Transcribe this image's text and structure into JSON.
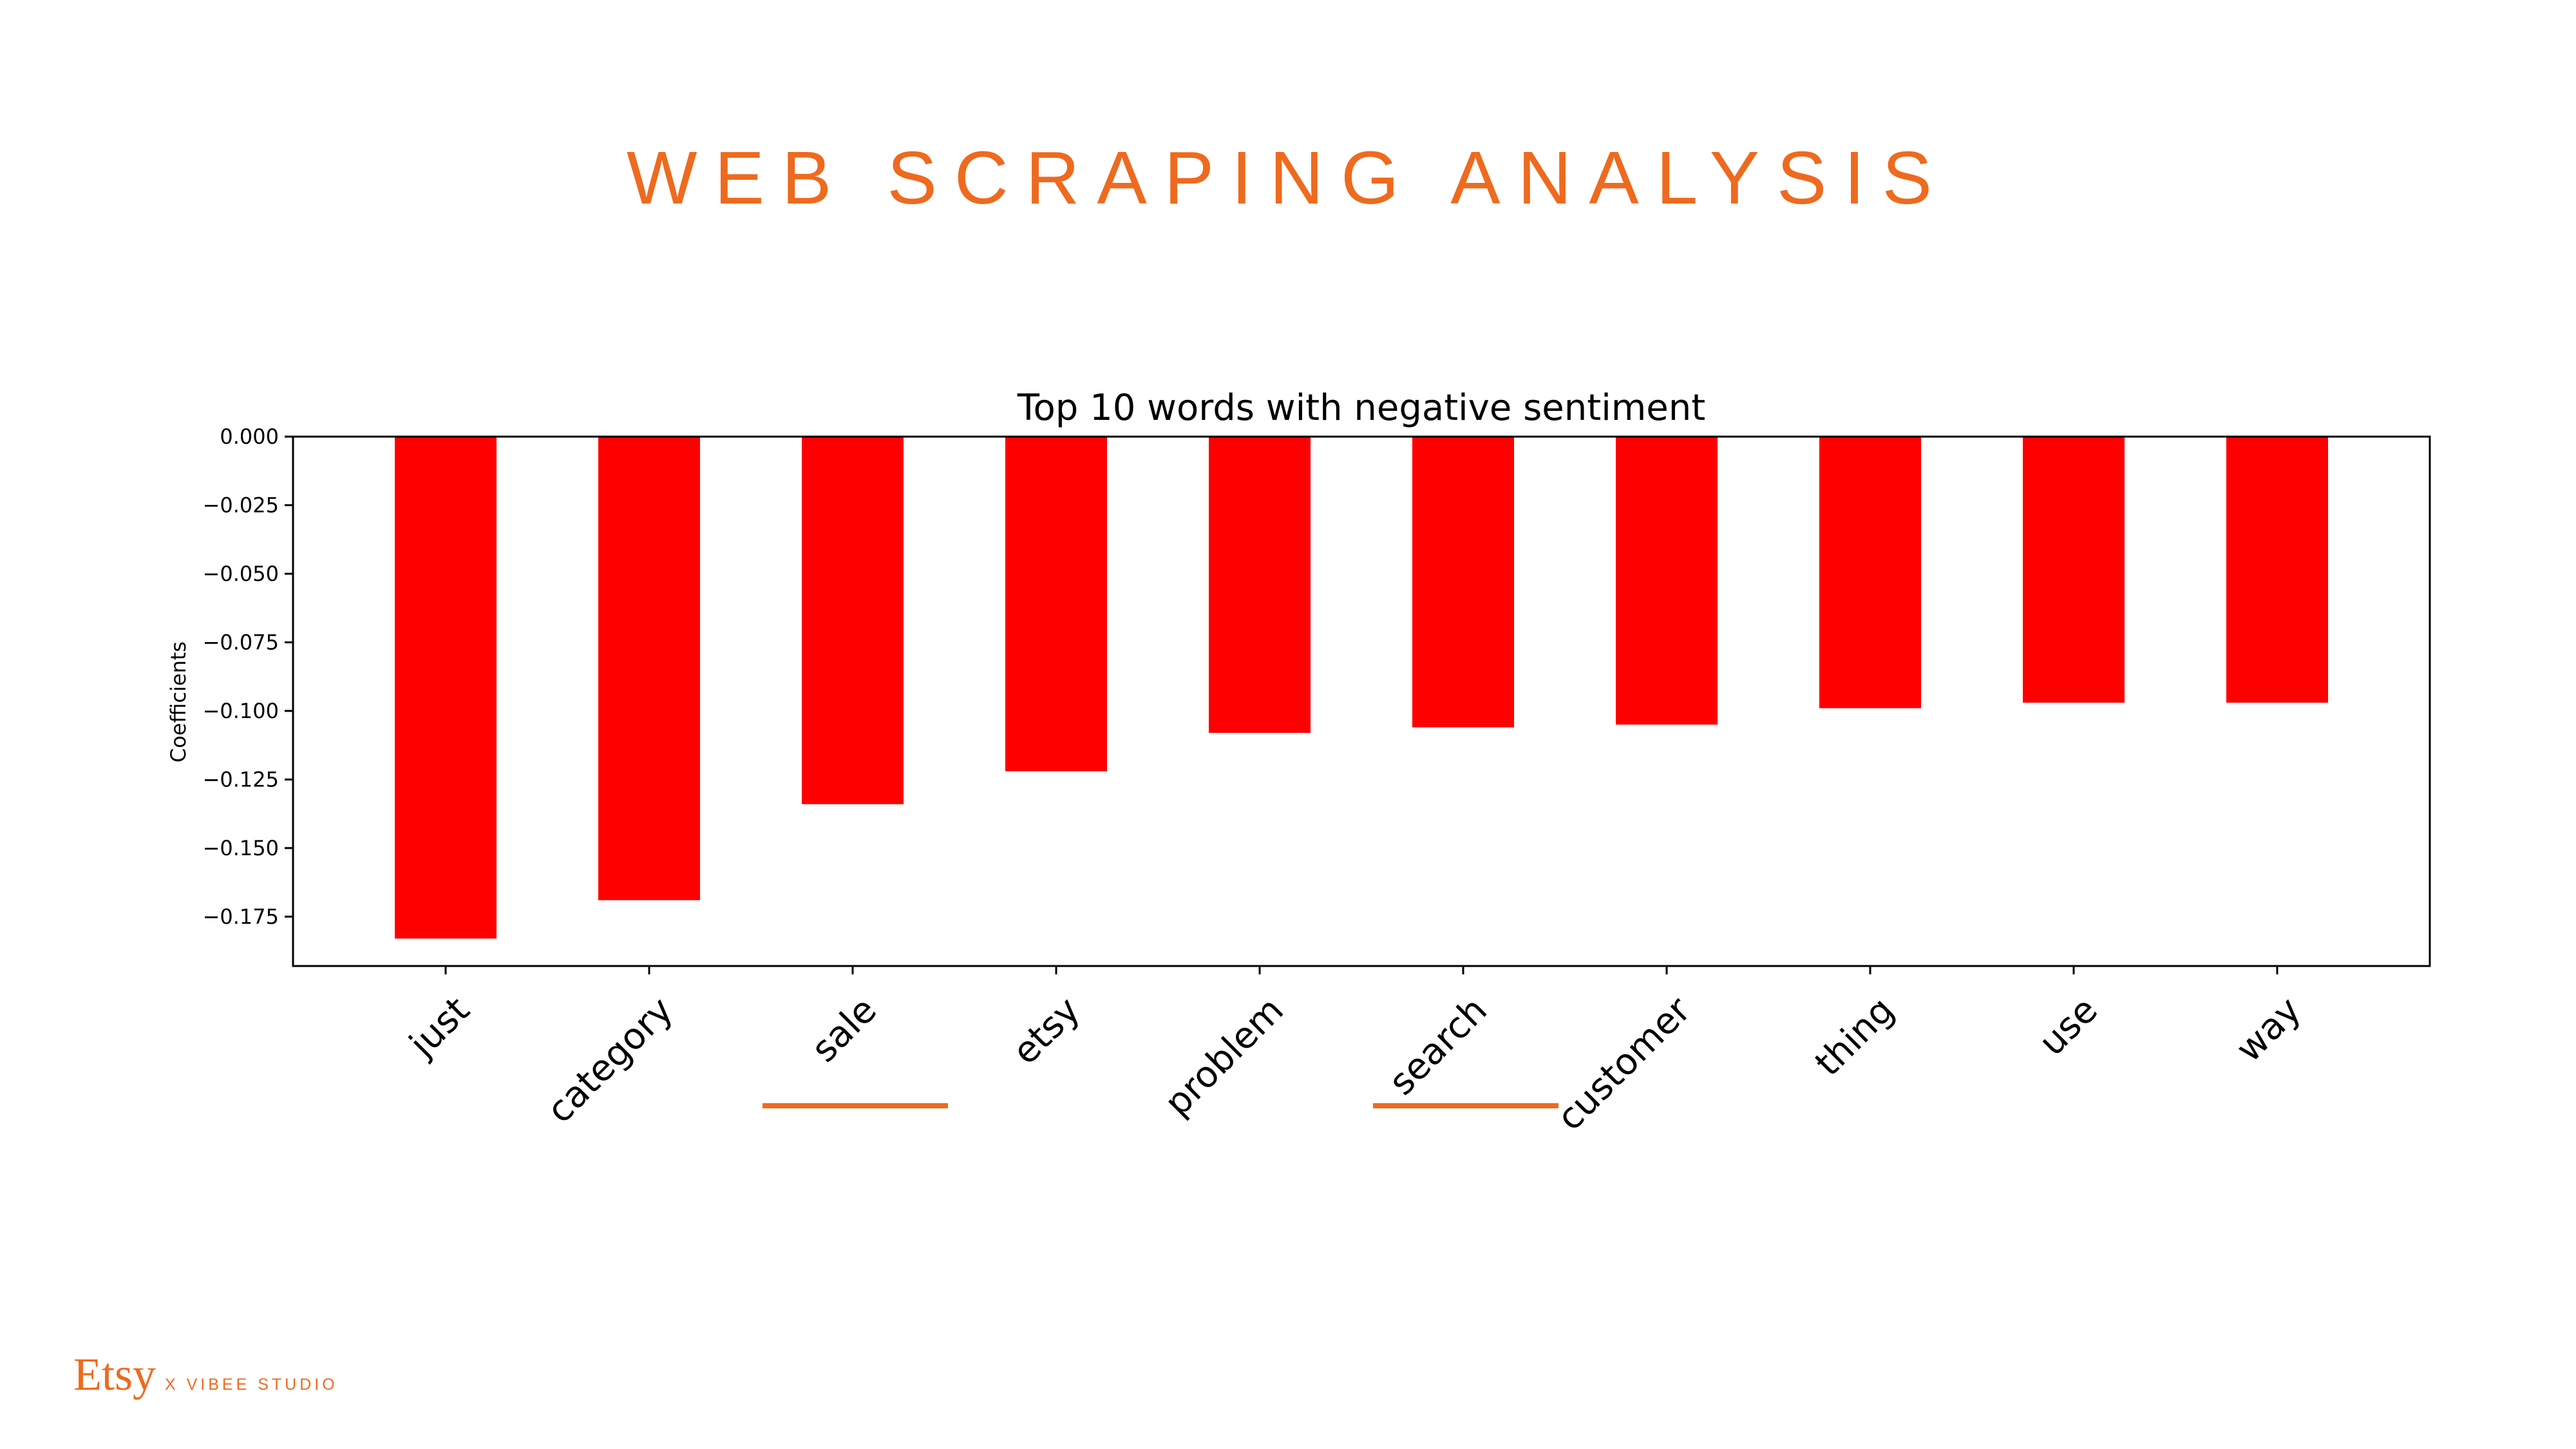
{
  "slide": {
    "title": "WEB SCRAPING ANALYSIS",
    "brand": "Etsy",
    "brand_tagline": "X VIBEE STUDIO",
    "accent_color": "#EE6A1E"
  },
  "chart_data": {
    "type": "bar",
    "title": "Top 10 words with negative sentiment",
    "xlabel": "",
    "ylabel": "Coefficients",
    "categories": [
      "just",
      "category",
      "sale",
      "etsy",
      "problem",
      "search",
      "customer",
      "thing",
      "use",
      "way"
    ],
    "values": [
      -0.183,
      -0.169,
      -0.134,
      -0.122,
      -0.108,
      -0.106,
      -0.105,
      -0.099,
      -0.097,
      -0.097
    ],
    "ylim": [
      -0.193,
      0.0
    ],
    "yticks": [
      0.0,
      -0.025,
      -0.05,
      -0.075,
      -0.1,
      -0.125,
      -0.15,
      -0.175
    ],
    "ytick_labels": [
      "0.000",
      "−0.025",
      "−0.050",
      "−0.075",
      "−0.100",
      "−0.125",
      "−0.150",
      "−0.175"
    ],
    "bar_color": "#FF0000",
    "grid": false,
    "legend": "none",
    "highlighted_categories": [
      "sale",
      "search"
    ],
    "highlight_color": "#EE6A1E"
  }
}
